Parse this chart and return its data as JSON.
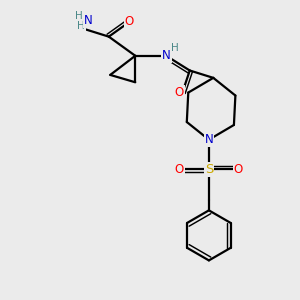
{
  "bg_color": "#ebebeb",
  "atom_colors": {
    "C": "#000000",
    "N": "#0000cc",
    "O": "#ff0000",
    "S": "#ccaa00",
    "H": "#4a8888"
  },
  "bond_color": "#000000",
  "bond_width": 1.6,
  "font_size_atom": 8.5,
  "font_size_H": 7.5
}
